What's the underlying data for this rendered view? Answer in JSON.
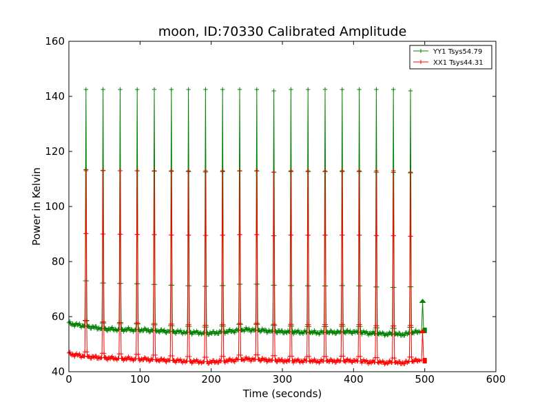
{
  "chart_data": {
    "type": "line",
    "title": "moon, ID:70330 Calibrated Amplitude",
    "xlabel": "Time (seconds)",
    "ylabel": "Power in Kelvin",
    "xlim": [
      0,
      600
    ],
    "ylim": [
      40,
      160
    ],
    "xticks": [
      0,
      100,
      200,
      300,
      400,
      500,
      600
    ],
    "yticks": [
      40,
      60,
      80,
      100,
      120,
      140,
      160
    ],
    "grid": false,
    "legend_position": "top-right",
    "peak_times": [
      24,
      48,
      72,
      96,
      120,
      144,
      168,
      192,
      216,
      240,
      264,
      288,
      312,
      336,
      360,
      384,
      408,
      432,
      456,
      480
    ],
    "series": [
      {
        "name": "YY1 Tsys54.79",
        "color": "#008000",
        "marker": "+",
        "baseline": [
          [
            0,
            57.5
          ],
          [
            25,
            56.5
          ],
          [
            50,
            55.5
          ],
          [
            100,
            55.2
          ],
          [
            150,
            54.5
          ],
          [
            200,
            54.0
          ],
          [
            250,
            55.3
          ],
          [
            300,
            54.5
          ],
          [
            350,
            54.2
          ],
          [
            400,
            54.5
          ],
          [
            430,
            53.8
          ],
          [
            470,
            53.5
          ],
          [
            500,
            55.0
          ]
        ],
        "peak_heights": [
          142.5,
          142.5,
          142.5,
          142.5,
          142.5,
          142.5,
          142.5,
          142.5,
          142.5,
          142.5,
          142.5,
          142.0,
          142.5,
          142.5,
          142.5,
          142.5,
          142.5,
          142.5,
          142.5,
          142.0
        ],
        "end_spike": [
          497,
          65.5
        ],
        "end_point": [
          500,
          55
        ]
      },
      {
        "name": "XX1 Tsys44.31",
        "color": "#ff0000",
        "marker": "+",
        "baseline": [
          [
            0,
            46.5
          ],
          [
            25,
            45.5
          ],
          [
            50,
            45.0
          ],
          [
            100,
            44.6
          ],
          [
            150,
            44.0
          ],
          [
            200,
            43.5
          ],
          [
            250,
            44.6
          ],
          [
            300,
            44.0
          ],
          [
            350,
            43.8
          ],
          [
            400,
            44.0
          ],
          [
            430,
            43.4
          ],
          [
            470,
            43.2
          ],
          [
            500,
            44.5
          ]
        ],
        "peak_heights": [
          113.0,
          113.0,
          113.0,
          113.0,
          113.0,
          113.0,
          113.0,
          113.0,
          113.0,
          113.0,
          113.0,
          112.5,
          113.0,
          113.0,
          113.0,
          113.0,
          113.0,
          113.0,
          113.0,
          112.5
        ],
        "end_spike": [
          497,
          54.5
        ],
        "end_point": [
          500,
          44
        ]
      }
    ]
  }
}
